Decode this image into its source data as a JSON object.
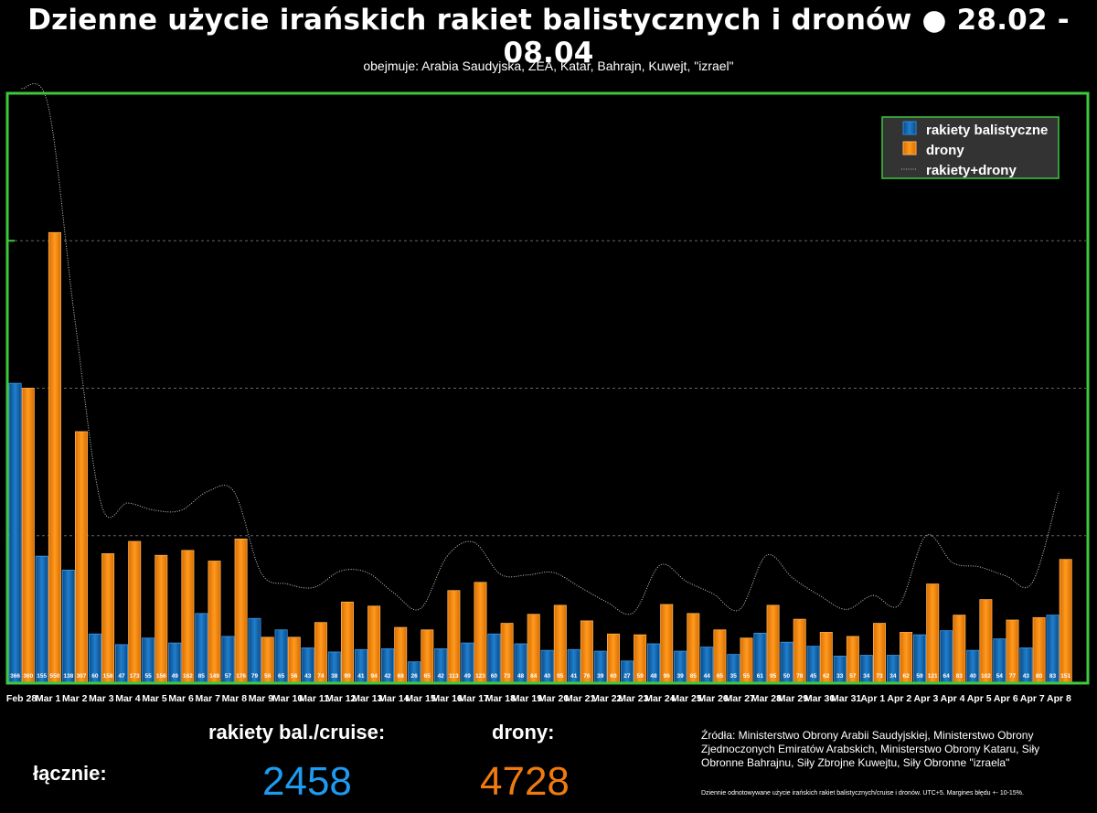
{
  "header": {
    "title": "Dzienne użycie irańskich rakiet balistycznych i dronów ● 28.02 - 08.04",
    "subtitle": "obejmuje: Arabia Saudyjska, ZEA, Katar, Bahrajn, Kuwejt, \"izrael\""
  },
  "chart_data": {
    "type": "bar",
    "categories": [
      "Feb 28",
      "Mar 1",
      "Mar 2",
      "Mar 3",
      "Mar 4",
      "Mar 5",
      "Mar 6",
      "Mar 7",
      "Mar 8",
      "Mar 9",
      "Mar 10",
      "Mar 11",
      "Mar 12",
      "Mar 13",
      "Mar 14",
      "Mar 15",
      "Mar 16",
      "Mar 17",
      "Mar 18",
      "Mar 19",
      "Mar 20",
      "Mar 21",
      "Mar 22",
      "Mar 23",
      "Mar 24",
      "Mar 25",
      "Mar 26",
      "Mar 27",
      "Mar 28",
      "Mar 29",
      "Mar 30",
      "Mar 31",
      "Apr 1",
      "Apr 2",
      "Apr 3",
      "Apr 4",
      "Apr 5",
      "Apr 6",
      "Apr 7",
      "Apr 8"
    ],
    "series": [
      {
        "name": "rakiety balistyczne",
        "color": "#1a6fb5",
        "values": [
          366,
          155,
          138,
          60,
          47,
          55,
          49,
          85,
          57,
          79,
          65,
          43,
          38,
          41,
          42,
          26,
          42,
          49,
          60,
          48,
          40,
          41,
          39,
          27,
          48,
          39,
          44,
          35,
          61,
          50,
          45,
          33,
          34,
          34,
          59,
          64,
          40,
          54,
          43,
          83
        ]
      },
      {
        "name": "drony",
        "color": "#f58a0f",
        "values": [
          360,
          550,
          307,
          158,
          173,
          156,
          162,
          149,
          176,
          56,
          56,
          74,
          99,
          94,
          68,
          65,
          113,
          123,
          73,
          84,
          95,
          76,
          60,
          59,
          96,
          85,
          65,
          55,
          95,
          78,
          62,
          57,
          73,
          62,
          121,
          83,
          102,
          77,
          80,
          151
        ]
      },
      {
        "name": "rakiety+drony",
        "color": "#bbbbbb",
        "style": "dotted",
        "derived": "sum"
      }
    ],
    "ylim": [
      0,
      720
    ],
    "grid": true,
    "legend_position": "top-right"
  },
  "totals": {
    "missiles_label": "rakiety bal./cruise:",
    "drones_label": "drony:",
    "total_label": "łącznie:",
    "missiles_total": "2458",
    "drones_total": "4728"
  },
  "sources": "Źródła: Ministerstwo Obrony Arabii Saudyjskiej, Ministerstwo Obrony Zjednoczonych Emiratów Arabskich, Ministerstwo Obrony Kataru, Siły Obronne Bahrajnu, Siły Zbrojne Kuwejtu, Siły Obronne \"izraela\"",
  "footnote": "Dziennie odnotowywane użycie irańskich rakiet balistycznych/cruise i dronów. UTC+5. Margines błędu +- 10-15%.",
  "colors": {
    "frame": "#3ec83e",
    "background": "#000000",
    "missiles_total": "#1e9bf0",
    "drones_total": "#f07a10"
  }
}
